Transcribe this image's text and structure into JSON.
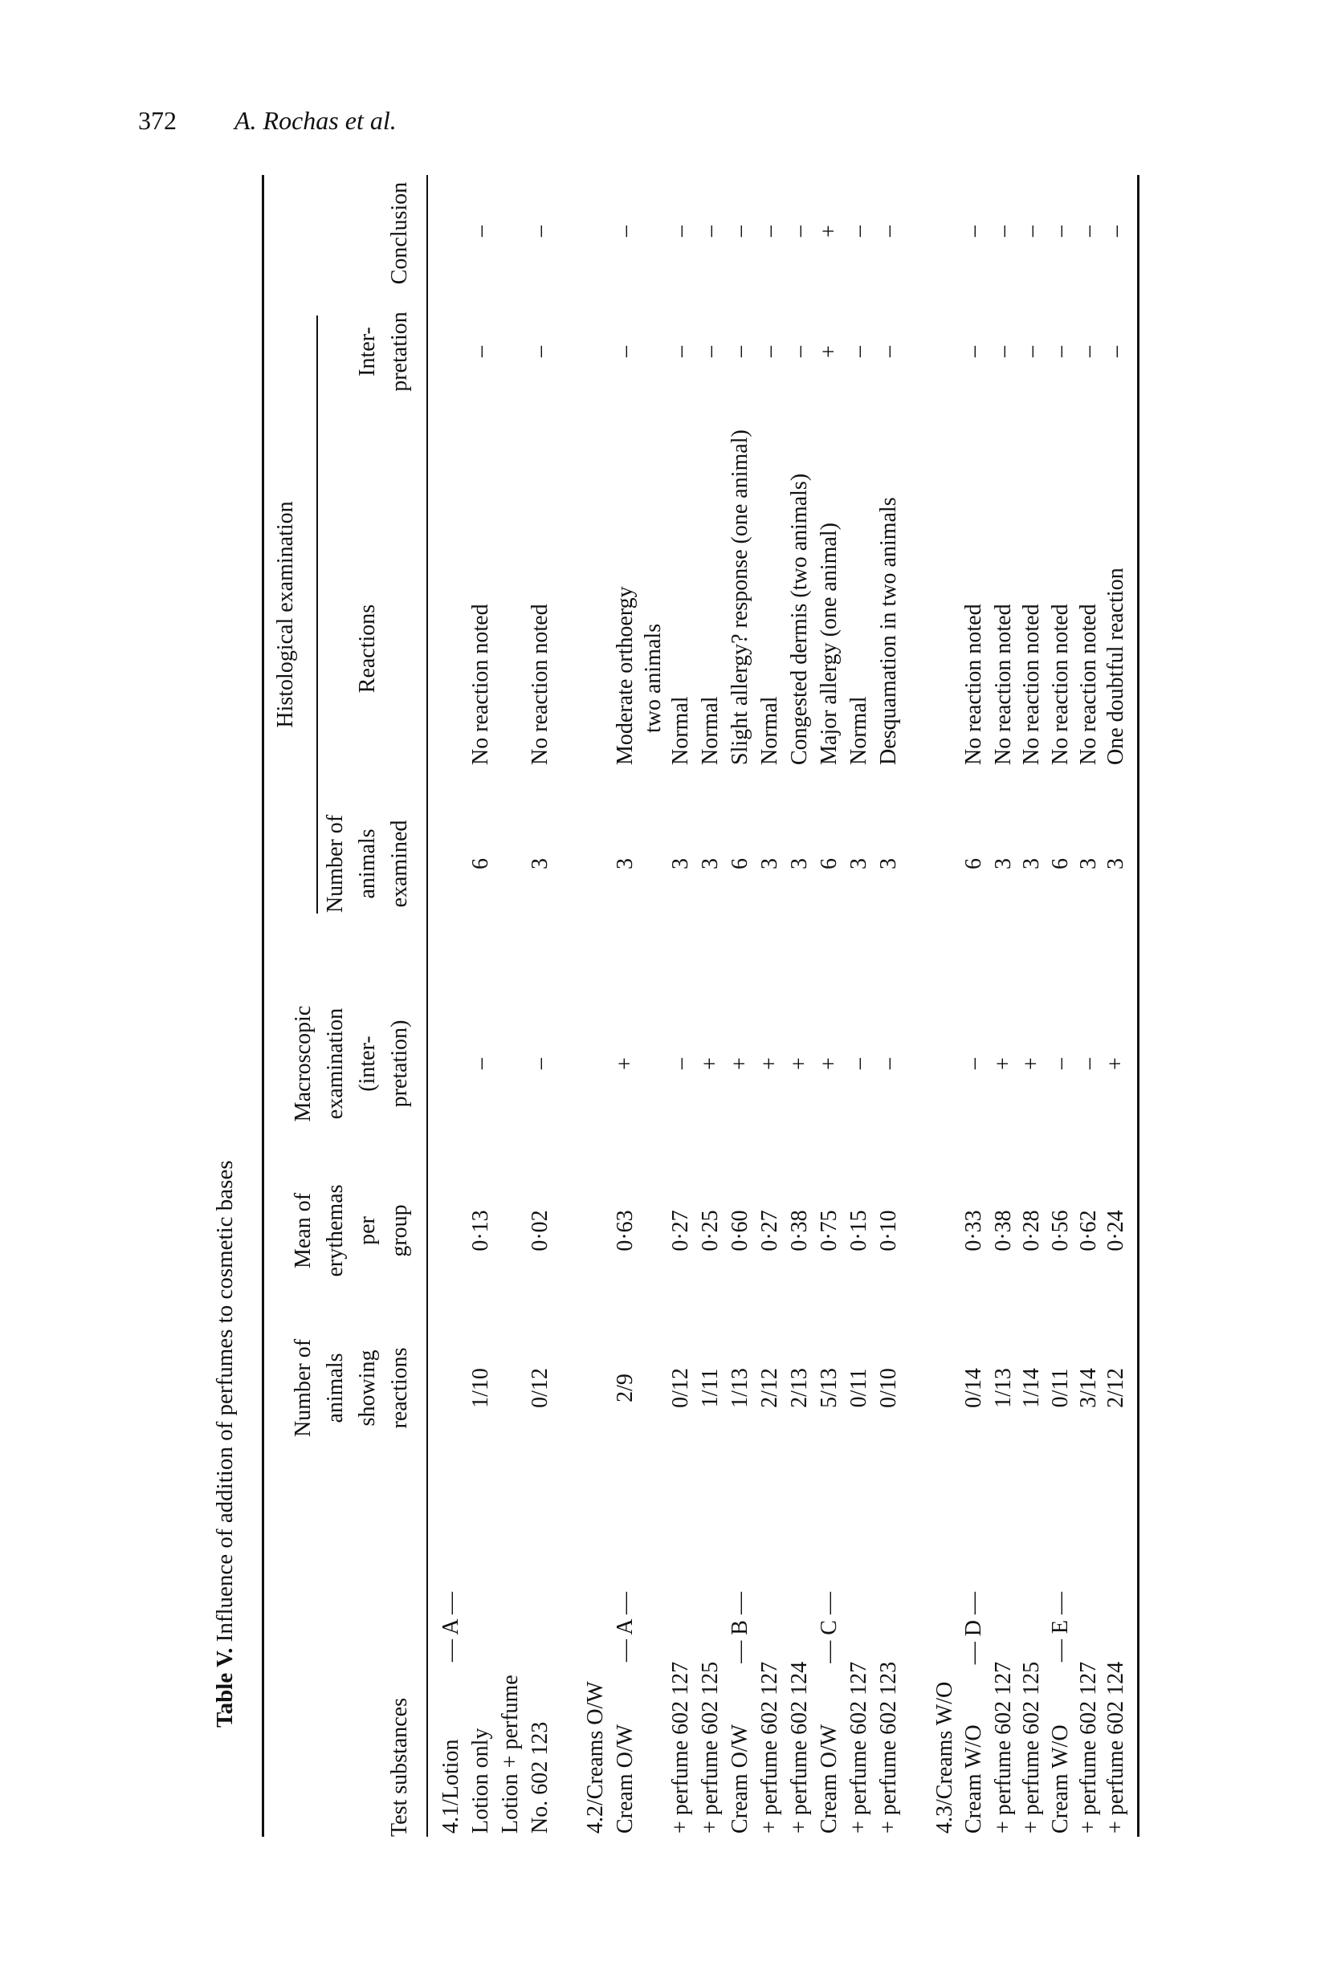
{
  "page": {
    "number": "372",
    "authors": "A. Rochas et al."
  },
  "table": {
    "label": "Table V.",
    "caption": "Influence of addition of perfumes to cosmetic bases",
    "headers": {
      "substances": "Test substances",
      "showing": [
        "Number of",
        "animals",
        "showing",
        "reactions"
      ],
      "mean": [
        "Mean of",
        "erythemas",
        "per",
        "group"
      ],
      "macro": [
        "Macroscopic",
        "examination",
        "(inter-",
        "pretation)"
      ],
      "histological": "Histological examination",
      "examined": [
        "Number of",
        "animals",
        "examined"
      ],
      "reactions": "Reactions",
      "interpretation": [
        "Inter-",
        "pretation"
      ],
      "conclusion": "Conclusion"
    },
    "rows": [
      {
        "substance": "4.1/Lotion",
        "marker": "— A —"
      },
      {
        "substance": "Lotion only",
        "showing": "1/10",
        "mean": "0·13",
        "macro": "–",
        "examined": "6",
        "reaction": "No reaction noted",
        "interpretation": "–",
        "conclusion": "–"
      },
      {
        "substance": "Lotion + perfume"
      },
      {
        "substance": "No. 602 123",
        "showing": "0/12",
        "mean": "0·02",
        "macro": "–",
        "examined": "3",
        "reaction": "No reaction noted",
        "interpretation": "–",
        "conclusion": "–"
      },
      {
        "substance": "4.2/Creams O/W"
      },
      {
        "substance": "Cream O/W",
        "marker": "— A —",
        "showing": "2/9",
        "mean": "0·63",
        "macro": "+",
        "examined": "3",
        "reaction": "Moderate orthoergy",
        "interpretation": "–",
        "conclusion": "–"
      },
      {
        "reaction_cont": "two animals"
      },
      {
        "substance": "+ perfume 602 127",
        "showing": "0/12",
        "mean": "0·27",
        "macro": "–",
        "examined": "3",
        "reaction": "Normal",
        "interpretation": "–",
        "conclusion": "–"
      },
      {
        "substance": "+ perfume 602 125",
        "showing": "1/11",
        "mean": "0·25",
        "macro": "+",
        "examined": "3",
        "reaction": "Normal",
        "interpretation": "–",
        "conclusion": "–"
      },
      {
        "substance": "Cream O/W",
        "marker": "— B —",
        "showing": "1/13",
        "mean": "0·60",
        "macro": "+",
        "examined": "6",
        "reaction": "Slight allergy? response (one animal)",
        "interpretation": "–",
        "conclusion": "–"
      },
      {
        "substance": "+ perfume 602 127",
        "showing": "2/12",
        "mean": "0·27",
        "macro": "+",
        "examined": "3",
        "reaction": "Normal",
        "interpretation": "–",
        "conclusion": "–"
      },
      {
        "substance": "+ perfume 602 124",
        "showing": "2/13",
        "mean": "0·38",
        "macro": "+",
        "examined": "3",
        "reaction": "Congested dermis (two animals)",
        "interpretation": "–",
        "conclusion": "–"
      },
      {
        "substance": "Cream O/W",
        "marker": "— C —",
        "showing": "5/13",
        "mean": "0·75",
        "macro": "+",
        "examined": "6",
        "reaction": "Major allergy (one animal)",
        "interpretation": "+",
        "conclusion": "+"
      },
      {
        "substance": "+ perfume 602 127",
        "showing": "0/11",
        "mean": "0·15",
        "macro": "–",
        "examined": "3",
        "reaction": "Normal",
        "interpretation": "–",
        "conclusion": "–"
      },
      {
        "substance": "+ perfume 602 123",
        "showing": "0/10",
        "mean": "0·10",
        "macro": "–",
        "examined": "3",
        "reaction": "Desquamation in two animals",
        "interpretation": "–",
        "conclusion": "–"
      },
      {
        "substance": "4.3/Creams W/O"
      },
      {
        "substance": "Cream W/O",
        "marker": "— D —",
        "showing": "0/14",
        "mean": "0·33",
        "macro": "–",
        "examined": "6",
        "reaction": "No reaction noted",
        "interpretation": "–",
        "conclusion": "–"
      },
      {
        "substance": "+ perfume 602 127",
        "showing": "1/13",
        "mean": "0·38",
        "macro": "+",
        "examined": "3",
        "reaction": "No reaction noted",
        "interpretation": "–",
        "conclusion": "–"
      },
      {
        "substance": "+ perfume 602 125",
        "showing": "1/14",
        "mean": "0·28",
        "macro": "+",
        "examined": "3",
        "reaction": "No reaction noted",
        "interpretation": "–",
        "conclusion": "–"
      },
      {
        "substance": "Cream W/O",
        "marker": "— E —",
        "showing": "0/11",
        "mean": "0·56",
        "macro": "–",
        "examined": "6",
        "reaction": "No reaction noted",
        "interpretation": "–",
        "conclusion": "–"
      },
      {
        "substance": "+ perfume 602 127",
        "showing": "3/14",
        "mean": "0·62",
        "macro": "–",
        "examined": "3",
        "reaction": "No reaction noted",
        "interpretation": "–",
        "conclusion": "–"
      },
      {
        "substance": "+ perfume 602 124",
        "showing": "2/12",
        "mean": "0·24",
        "macro": "+",
        "examined": "3",
        "reaction": "One doubtful reaction",
        "interpretation": "–",
        "conclusion": "–"
      }
    ]
  }
}
